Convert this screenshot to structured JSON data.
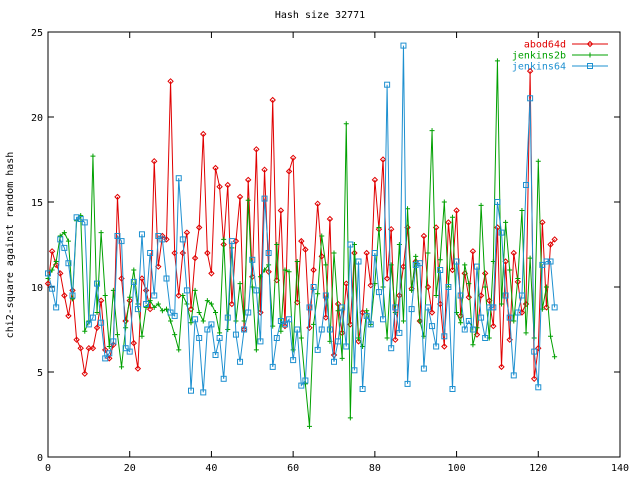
{
  "chart_data": {
    "type": "line",
    "title": "Hash size 32771",
    "xlabel": "",
    "ylabel": "chi2-square against random hash",
    "xlim": [
      0,
      140
    ],
    "ylim": [
      0,
      25
    ],
    "x_ticks": [
      0,
      20,
      40,
      60,
      80,
      100,
      120,
      140
    ],
    "y_ticks": [
      0,
      5,
      10,
      15,
      20,
      25
    ],
    "grid": false,
    "legend_position": "top-right",
    "series": [
      {
        "name": "abod64d",
        "color": "#e00000",
        "marker": "diamond",
        "x": [
          0,
          1,
          2,
          3,
          4,
          5,
          6,
          7,
          8,
          9,
          10,
          11,
          12,
          13,
          14,
          15,
          16,
          17,
          18,
          19,
          20,
          21,
          22,
          23,
          24,
          25,
          26,
          27,
          28,
          29,
          30,
          31,
          32,
          33,
          34,
          35,
          36,
          37,
          38,
          39,
          40,
          41,
          42,
          43,
          44,
          45,
          46,
          47,
          48,
          49,
          50,
          51,
          52,
          53,
          54,
          55,
          56,
          57,
          58,
          59,
          60,
          61,
          62,
          63,
          64,
          65,
          66,
          67,
          68,
          69,
          70,
          71,
          72,
          73,
          74,
          75,
          76,
          77,
          78,
          79,
          80,
          81,
          82,
          83,
          84,
          85,
          86,
          87,
          88,
          89,
          90,
          91,
          92,
          93,
          94,
          95,
          96,
          97,
          98,
          99,
          100,
          101,
          102,
          103,
          104,
          105,
          106,
          107,
          108,
          109,
          110,
          111,
          112,
          113,
          114,
          115,
          116,
          117,
          118,
          119,
          120,
          121,
          122,
          123,
          124
        ],
        "y": [
          10.2,
          12.1,
          11.3,
          10.8,
          9.5,
          8.3,
          9.8,
          6.9,
          6.4,
          4.9,
          6.4,
          6.4,
          7.6,
          9.2,
          6.3,
          5.8,
          6.6,
          15.3,
          10.5,
          8.0,
          9.2,
          6.7,
          5.2,
          10.5,
          9.8,
          8.7,
          17.4,
          11.2,
          13.0,
          12.8,
          22.1,
          12.0,
          9.5,
          12.0,
          13.2,
          8.7,
          11.7,
          13.5,
          19.0,
          12.0,
          10.8,
          17.0,
          15.9,
          12.5,
          16.0,
          9.0,
          12.7,
          15.3,
          7.5,
          16.3,
          10.6,
          18.1,
          8.5,
          16.9,
          10.9,
          21.0,
          10.4,
          14.5,
          7.7,
          16.8,
          17.6,
          9.1,
          12.7,
          12.2,
          7.6,
          11.0,
          14.9,
          11.8,
          8.2,
          14.0,
          6.0,
          9.0,
          7.3,
          10.2,
          7.8,
          12.0,
          6.8,
          8.5,
          12.0,
          10.1,
          16.3,
          13.4,
          17.5,
          10.5,
          13.4,
          6.9,
          9.5,
          11.2,
          13.5,
          9.9,
          11.5,
          8.0,
          13.0,
          10.0,
          8.5,
          13.5,
          9.0,
          6.5,
          13.8,
          11.0,
          14.5,
          8.3,
          10.8,
          9.4,
          12.1,
          7.2,
          9.5,
          10.8,
          9.2,
          7.7,
          13.5,
          5.3,
          11.5,
          6.9,
          12.0,
          10.3,
          8.5,
          9.0,
          22.7,
          4.6,
          6.4,
          13.8,
          8.8,
          12.5,
          12.8
        ]
      },
      {
        "name": "jenkins2b",
        "color": "#00a000",
        "marker": "plus",
        "x": [
          0,
          1,
          2,
          3,
          4,
          5,
          6,
          7,
          8,
          9,
          10,
          11,
          12,
          13,
          14,
          15,
          16,
          17,
          18,
          19,
          20,
          21,
          22,
          23,
          24,
          25,
          26,
          27,
          28,
          29,
          30,
          31,
          32,
          33,
          34,
          35,
          36,
          37,
          38,
          39,
          40,
          41,
          42,
          43,
          44,
          45,
          46,
          47,
          48,
          49,
          50,
          51,
          52,
          53,
          54,
          55,
          56,
          57,
          58,
          59,
          60,
          61,
          62,
          63,
          64,
          65,
          66,
          67,
          68,
          69,
          70,
          71,
          72,
          73,
          74,
          75,
          76,
          77,
          78,
          79,
          80,
          81,
          82,
          83,
          84,
          85,
          86,
          87,
          88,
          89,
          90,
          91,
          92,
          93,
          94,
          95,
          96,
          97,
          98,
          99,
          100,
          101,
          102,
          103,
          104,
          105,
          106,
          107,
          108,
          109,
          110,
          111,
          112,
          113,
          114,
          115,
          116,
          117,
          118,
          119,
          120,
          121,
          122,
          123,
          124
        ],
        "y": [
          10.5,
          11.0,
          11.5,
          13.0,
          13.2,
          12.7,
          9.3,
          13.9,
          14.2,
          7.4,
          8.0,
          17.7,
          8.5,
          13.2,
          9.5,
          6.5,
          9.8,
          7.2,
          5.3,
          7.6,
          9.4,
          11.0,
          9.0,
          7.1,
          8.8,
          9.2,
          8.8,
          9.0,
          8.6,
          8.7,
          8.0,
          7.2,
          6.3,
          9.5,
          9.0,
          7.9,
          9.8,
          8.5,
          8.0,
          9.2,
          9.0,
          8.5,
          7.3,
          12.8,
          7.5,
          12.3,
          8.0,
          10.2,
          8.0,
          15.1,
          10.0,
          6.3,
          10.6,
          11.0,
          11.3,
          7.7,
          12.5,
          7.4,
          11.0,
          10.9,
          6.3,
          11.5,
          7.0,
          4.3,
          1.8,
          7.8,
          9.6,
          13.0,
          11.3,
          6.8,
          12.0,
          8.6,
          5.8,
          19.6,
          2.3,
          12.5,
          7.0,
          6.5,
          8.6,
          7.8,
          10.2,
          13.5,
          10.0,
          7.0,
          11.3,
          8.5,
          12.5,
          8.0,
          14.6,
          9.8,
          11.8,
          8.0,
          7.1,
          12.0,
          19.2,
          9.5,
          11.6,
          15.0,
          10.0,
          14.1,
          8.5,
          7.9,
          11.3,
          10.2,
          6.6,
          7.6,
          14.8,
          10.0,
          7.0,
          11.5,
          23.3,
          9.0,
          13.8,
          11.0,
          8.0,
          10.5,
          14.5,
          7.3,
          11.7,
          7.0,
          17.4,
          8.7,
          10.0,
          7.1,
          5.9
        ]
      },
      {
        "name": "jenkins64",
        "color": "#1e90d0",
        "marker": "square",
        "x": [
          0,
          1,
          2,
          3,
          4,
          5,
          6,
          7,
          8,
          9,
          10,
          11,
          12,
          13,
          14,
          15,
          16,
          17,
          18,
          19,
          20,
          21,
          22,
          23,
          24,
          25,
          26,
          27,
          28,
          29,
          30,
          31,
          32,
          33,
          34,
          35,
          36,
          37,
          38,
          39,
          40,
          41,
          42,
          43,
          44,
          45,
          46,
          47,
          48,
          49,
          50,
          51,
          52,
          53,
          54,
          55,
          56,
          57,
          58,
          59,
          60,
          61,
          62,
          63,
          64,
          65,
          66,
          67,
          68,
          69,
          70,
          71,
          72,
          73,
          74,
          75,
          76,
          77,
          78,
          79,
          80,
          81,
          82,
          83,
          84,
          85,
          86,
          87,
          88,
          89,
          90,
          91,
          92,
          93,
          94,
          95,
          96,
          97,
          98,
          99,
          100,
          101,
          102,
          103,
          104,
          105,
          106,
          107,
          108,
          109,
          110,
          111,
          112,
          113,
          114,
          115,
          116,
          117,
          118,
          119,
          120,
          121,
          122,
          123,
          124
        ],
        "y": [
          10.8,
          9.9,
          8.8,
          12.8,
          12.3,
          11.4,
          9.5,
          14.1,
          14.0,
          13.8,
          7.8,
          8.2,
          10.2,
          7.9,
          5.8,
          6.1,
          6.8,
          13.0,
          12.7,
          6.4,
          6.2,
          10.3,
          8.7,
          13.1,
          9.0,
          12.0,
          9.5,
          13.0,
          12.8,
          10.5,
          8.5,
          8.3,
          16.4,
          12.8,
          9.8,
          3.9,
          8.1,
          7.0,
          3.8,
          7.5,
          7.8,
          6.0,
          7.0,
          4.6,
          8.2,
          12.7,
          7.2,
          5.6,
          7.5,
          8.5,
          11.6,
          9.8,
          6.8,
          15.2,
          12.0,
          5.3,
          7.0,
          8.0,
          7.8,
          8.1,
          5.7,
          7.5,
          4.2,
          4.5,
          8.8,
          10.0,
          6.3,
          7.5,
          9.5,
          7.5,
          5.6,
          6.8,
          8.8,
          6.5,
          12.5,
          5.1,
          11.5,
          4.0,
          8.3,
          7.8,
          12.0,
          9.7,
          8.1,
          21.9,
          6.4,
          8.8,
          7.3,
          24.2,
          4.3,
          8.7,
          11.3,
          11.4,
          5.2,
          8.8,
          7.7,
          6.5,
          11.0,
          7.1,
          10.0,
          4.0,
          11.5,
          9.5,
          7.5,
          8.0,
          7.5,
          11.2,
          8.2,
          7.0,
          8.8,
          8.8,
          15.0,
          13.2,
          9.5,
          8.2,
          4.8,
          8.5,
          9.5,
          16.0,
          21.1,
          6.2,
          4.1,
          11.3,
          11.5,
          11.5,
          8.8
        ]
      }
    ]
  }
}
